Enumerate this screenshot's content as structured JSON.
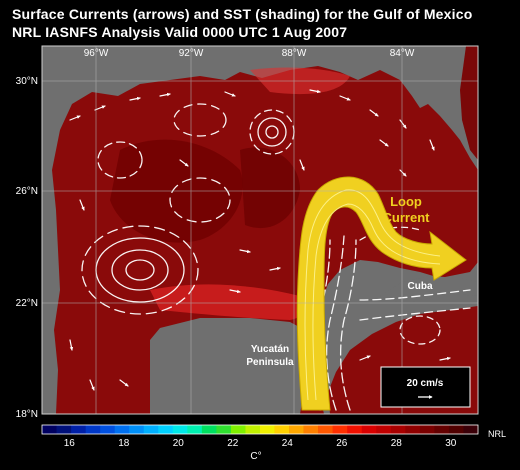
{
  "title_line1": "Surface Currents (arrows) and SST (shading) for the Gulf of Mexico",
  "title_line2": "NRL IASNFS Analysis Valid 0000 UTC  1 Aug 2007",
  "lon_labels": [
    "96°W",
    "92°W",
    "88°W",
    "84°W"
  ],
  "lat_labels": [
    "30°N",
    "26°N",
    "22°N",
    "18°N"
  ],
  "annotations": {
    "loop_current_line1": "Loop",
    "loop_current_line2": "Current",
    "cuba": "Cuba",
    "yucatan_line1": "Yucatán",
    "yucatan_line2": "Peninsula",
    "scale_label": "20 cm/s",
    "credit": "NRL"
  },
  "colorbar": {
    "unit": "C°",
    "ticks": [
      "16",
      "18",
      "20",
      "22",
      "24",
      "26",
      "28",
      "30"
    ],
    "colors": [
      "#000060",
      "#00107a",
      "#0020a8",
      "#0038c8",
      "#0050e0",
      "#0070f0",
      "#0090f8",
      "#00b0ff",
      "#00d0ff",
      "#00e8e8",
      "#00f0b0",
      "#00e060",
      "#30e030",
      "#80f000",
      "#c0f000",
      "#f0f000",
      "#ffd000",
      "#ffa800",
      "#ff8000",
      "#ff5800",
      "#ff3000",
      "#f01000",
      "#d80000",
      "#c00000",
      "#a80000",
      "#900000",
      "#7a0000",
      "#640000",
      "#500000",
      "#3a0008"
    ]
  },
  "colors": {
    "land": "#6f6f6f",
    "ocean_base": "#8a0a0a",
    "ocean_warm": "#700000",
    "ocean_cool": "#d01a1a",
    "loop_current": "#f0d020",
    "arrows": "#ffffff",
    "grid": "#b0b0b0"
  }
}
